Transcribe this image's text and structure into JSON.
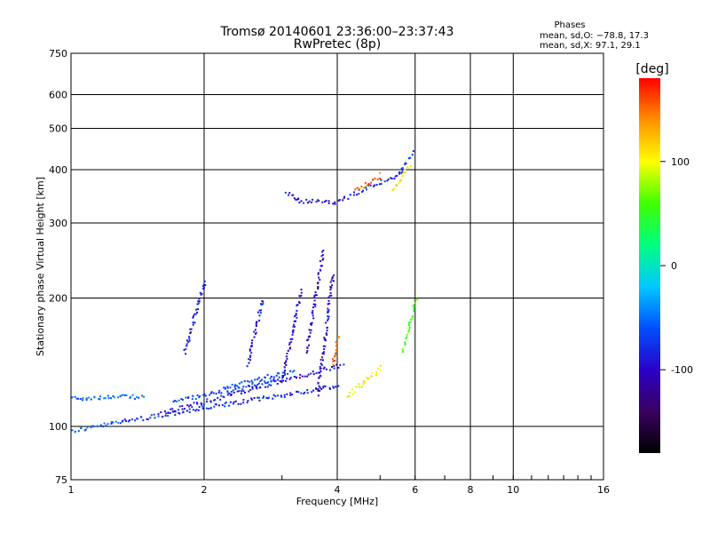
{
  "chart_data": {
    "type": "scatter",
    "title": "Tromsø 20140601 23:36:00–23:37:43",
    "subtitle": "RwPretec (8p)",
    "xlabel": "Frequency [MHz]",
    "ylabel": "Stationary phase Virtual Height [km]",
    "x_scale": "log",
    "y_scale": "log",
    "xlim": [
      1,
      16
    ],
    "ylim": [
      75,
      750
    ],
    "x_ticks": [
      1,
      2,
      4,
      6,
      8,
      10,
      16
    ],
    "y_ticks": [
      75,
      100,
      200,
      300,
      400,
      500,
      600,
      750
    ],
    "x_grid": [
      2,
      4,
      6,
      8,
      10
    ],
    "y_grid": [
      100,
      200,
      300,
      400,
      500,
      600
    ],
    "grid": true,
    "stats": {
      "heading": "Phases",
      "line1": "mean, sd,O: −78.8, 17.3",
      "line2": "mean, sd,X:  97.1, 29.1"
    },
    "colorbar": {
      "label": "[deg]",
      "min": -180,
      "max": 180,
      "ticks": [
        100,
        0,
        -100
      ],
      "colors": [
        "#000000",
        "#3a0060",
        "#2a00c8",
        "#0050ff",
        "#00c8ff",
        "#00ff80",
        "#40ff00",
        "#ffff00",
        "#ff9000",
        "#ff0000"
      ]
    },
    "series": [
      {
        "traces": [
          {
            "x0": 1.0,
            "x1": 1.3,
            "y0": 98,
            "y1": 103,
            "phase": -55
          },
          {
            "x0": 1.0,
            "x1": 1.45,
            "y0": 117,
            "y1": 118,
            "phase": -55
          },
          {
            "x0": 1.3,
            "x1": 4.0,
            "y0": 103,
            "y1": 125,
            "phase": -80
          },
          {
            "x0": 1.6,
            "x1": 4.1,
            "y0": 108,
            "y1": 140,
            "phase": -90
          },
          {
            "x0": 1.7,
            "x1": 3.0,
            "y0": 115,
            "y1": 130,
            "phase": -70
          },
          {
            "x0": 2.2,
            "x1": 3.2,
            "y0": 124,
            "y1": 136,
            "phase": -60
          },
          {
            "x0": 1.8,
            "x1": 2.0,
            "y0": 150,
            "y1": 220,
            "phase": -85
          },
          {
            "x0": 2.5,
            "x1": 2.7,
            "y0": 140,
            "y1": 200,
            "phase": -90
          },
          {
            "x0": 3.0,
            "x1": 3.3,
            "y0": 130,
            "y1": 210,
            "phase": -95
          },
          {
            "x0": 3.4,
            "x1": 3.7,
            "y0": 150,
            "y1": 260,
            "phase": -100
          },
          {
            "x0": 3.6,
            "x1": 3.9,
            "y0": 120,
            "y1": 230,
            "phase": -95
          },
          {
            "x0": 3.2,
            "x1": 4.0,
            "y0": 340,
            "y1": 337,
            "phase": -95
          },
          {
            "x0": 3.05,
            "x1": 3.25,
            "y0": 355,
            "y1": 340,
            "phase": -90
          },
          {
            "x0": 4.0,
            "x1": 5.6,
            "y0": 340,
            "y1": 395,
            "phase": -80
          },
          {
            "x0": 5.5,
            "x1": 5.9,
            "y0": 390,
            "y1": 440,
            "phase": -70
          },
          {
            "x0": 5.3,
            "x1": 5.8,
            "y0": 360,
            "y1": 410,
            "phase": 110
          },
          {
            "x0": 4.4,
            "x1": 5.0,
            "y0": 360,
            "y1": 390,
            "phase": 150
          },
          {
            "x0": 4.2,
            "x1": 5.0,
            "y0": 118,
            "y1": 138,
            "phase": 100
          },
          {
            "x0": 5.6,
            "x1": 6.0,
            "y0": 150,
            "y1": 200,
            "phase": 60
          },
          {
            "x0": 3.9,
            "x1": 4.0,
            "y0": 140,
            "y1": 165,
            "phase": 150
          }
        ]
      }
    ]
  }
}
